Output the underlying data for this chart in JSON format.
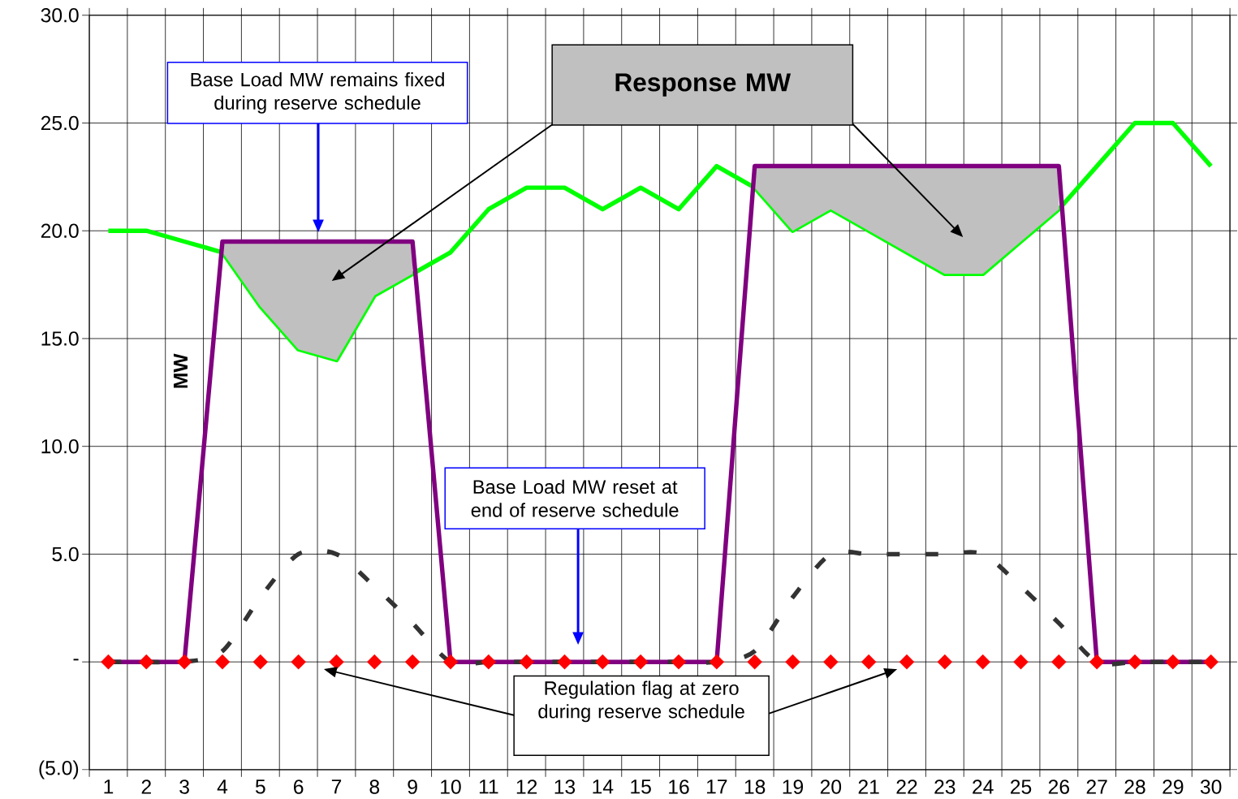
{
  "chart_data": {
    "type": "line",
    "ylabel": "MW",
    "categories": [
      "1",
      "2",
      "3",
      "4",
      "5",
      "6",
      "7",
      "8",
      "9",
      "10",
      "11",
      "12",
      "13",
      "14",
      "15",
      "16",
      "17",
      "18",
      "19",
      "20",
      "21",
      "22",
      "23",
      "24",
      "25",
      "26",
      "27",
      "28",
      "29",
      "30"
    ],
    "ylim": [
      -5,
      30
    ],
    "yticks": [
      {
        "value": -5,
        "label": "(5.0)"
      },
      {
        "value": 0,
        "label": "-"
      },
      {
        "value": 5,
        "label": "5.0"
      },
      {
        "value": 10,
        "label": "10.0"
      },
      {
        "value": 15,
        "label": "15.0"
      },
      {
        "value": 20,
        "label": "20.0"
      },
      {
        "value": 25,
        "label": "25.0"
      },
      {
        "value": 30,
        "label": "30.0"
      }
    ],
    "grid": true,
    "series": [
      {
        "color": "#00ff00",
        "values": [
          20,
          20,
          19.5,
          19,
          16.5,
          14.5,
          14,
          17,
          18,
          19,
          21,
          22,
          22,
          21,
          22,
          21,
          23,
          22,
          20,
          21,
          20,
          19,
          18,
          18,
          19.5,
          21,
          23,
          25,
          25,
          23
        ]
      },
      {
        "color": "#800080",
        "values": [
          0,
          0,
          0,
          19.5,
          19.5,
          19.5,
          19.5,
          19.5,
          19.5,
          0,
          0,
          0,
          0,
          0,
          0,
          0,
          0,
          23,
          23,
          23,
          23,
          23,
          23,
          23,
          23,
          23,
          0,
          0,
          0,
          0
        ],
        "lower": [
          null,
          null,
          null,
          19,
          16.5,
          14.5,
          14,
          17,
          18,
          null,
          null,
          null,
          null,
          null,
          null,
          null,
          null,
          22,
          20,
          21,
          20,
          19,
          18,
          18,
          19.5,
          21,
          null,
          null,
          null,
          null
        ],
        "upper": [
          null,
          null,
          null,
          19.5,
          19.5,
          19.5,
          19.5,
          19.5,
          19.5,
          null,
          null,
          null,
          null,
          null,
          null,
          null,
          null,
          23,
          23,
          23,
          23,
          23,
          23,
          23,
          23,
          23,
          null,
          null,
          null,
          null
        ]
      },
      {
        "color": "#333333",
        "line_style": "dashed",
        "values": [
          0,
          0,
          0,
          0.5,
          3,
          5,
          5,
          3.5,
          1.8,
          0,
          0,
          0,
          0,
          0,
          0,
          0,
          0,
          0.5,
          3,
          5,
          5,
          5,
          5,
          5,
          3.5,
          1.8,
          0,
          0,
          0,
          0
        ]
      },
      {
        "type": "scatter",
        "color": "#ff0000",
        "marker": "diamond",
        "values": [
          0,
          0,
          0,
          0,
          0,
          0,
          0,
          0,
          0,
          0,
          0,
          0,
          0,
          0,
          0,
          0,
          0,
          0,
          0,
          0,
          0,
          0,
          0,
          0,
          0,
          0,
          0,
          0,
          0,
          0
        ]
      }
    ],
    "annotations": [
      "Base Load MW remains fixed during reserve schedule",
      "Response MW",
      "Base Load MW reset at end of reserve schedule",
      {
        "text": "Regulation flag at zero during reserve schedule",
        "y": 0
      }
    ]
  }
}
